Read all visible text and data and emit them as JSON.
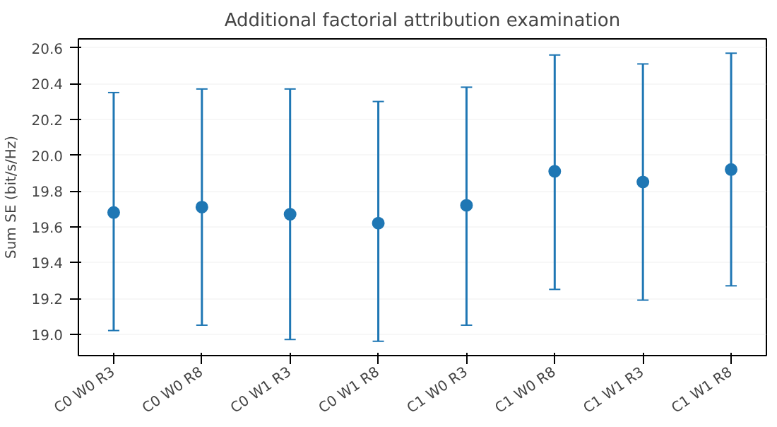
{
  "chart_data": {
    "type": "scatter",
    "title": "Additional factorial attribution examination",
    "ylabel": "Sum SE (bit/s/Hz)",
    "categories": [
      "C0 W0 R3",
      "C0 W0 R8",
      "C0 W1 R3",
      "C0 W1 R8",
      "C1 W0 R3",
      "C1 W0 R8",
      "C1 W1 R3",
      "C1 W1 R8"
    ],
    "series": [
      {
        "color": "#1f77b4",
        "values": [
          19.68,
          19.71,
          19.67,
          19.62,
          19.72,
          19.91,
          19.85,
          19.92
        ],
        "errors": [
          [
            19.02,
            20.35
          ],
          [
            19.05,
            20.37
          ],
          [
            18.97,
            20.37
          ],
          [
            18.96,
            20.3
          ],
          [
            19.05,
            20.38
          ],
          [
            19.25,
            20.56
          ],
          [
            19.19,
            20.51
          ],
          [
            19.27,
            20.57
          ]
        ]
      }
    ],
    "ylim": [
      18.88,
      20.65
    ],
    "yticks": [
      {
        "value": 19.0,
        "label": "19.0"
      },
      19.2,
      19.4,
      19.6,
      19.8,
      {
        "value": 20.0,
        "label": "20.0"
      },
      20.2,
      20.4,
      20.6
    ],
    "grid": "y",
    "marker": "circle"
  }
}
